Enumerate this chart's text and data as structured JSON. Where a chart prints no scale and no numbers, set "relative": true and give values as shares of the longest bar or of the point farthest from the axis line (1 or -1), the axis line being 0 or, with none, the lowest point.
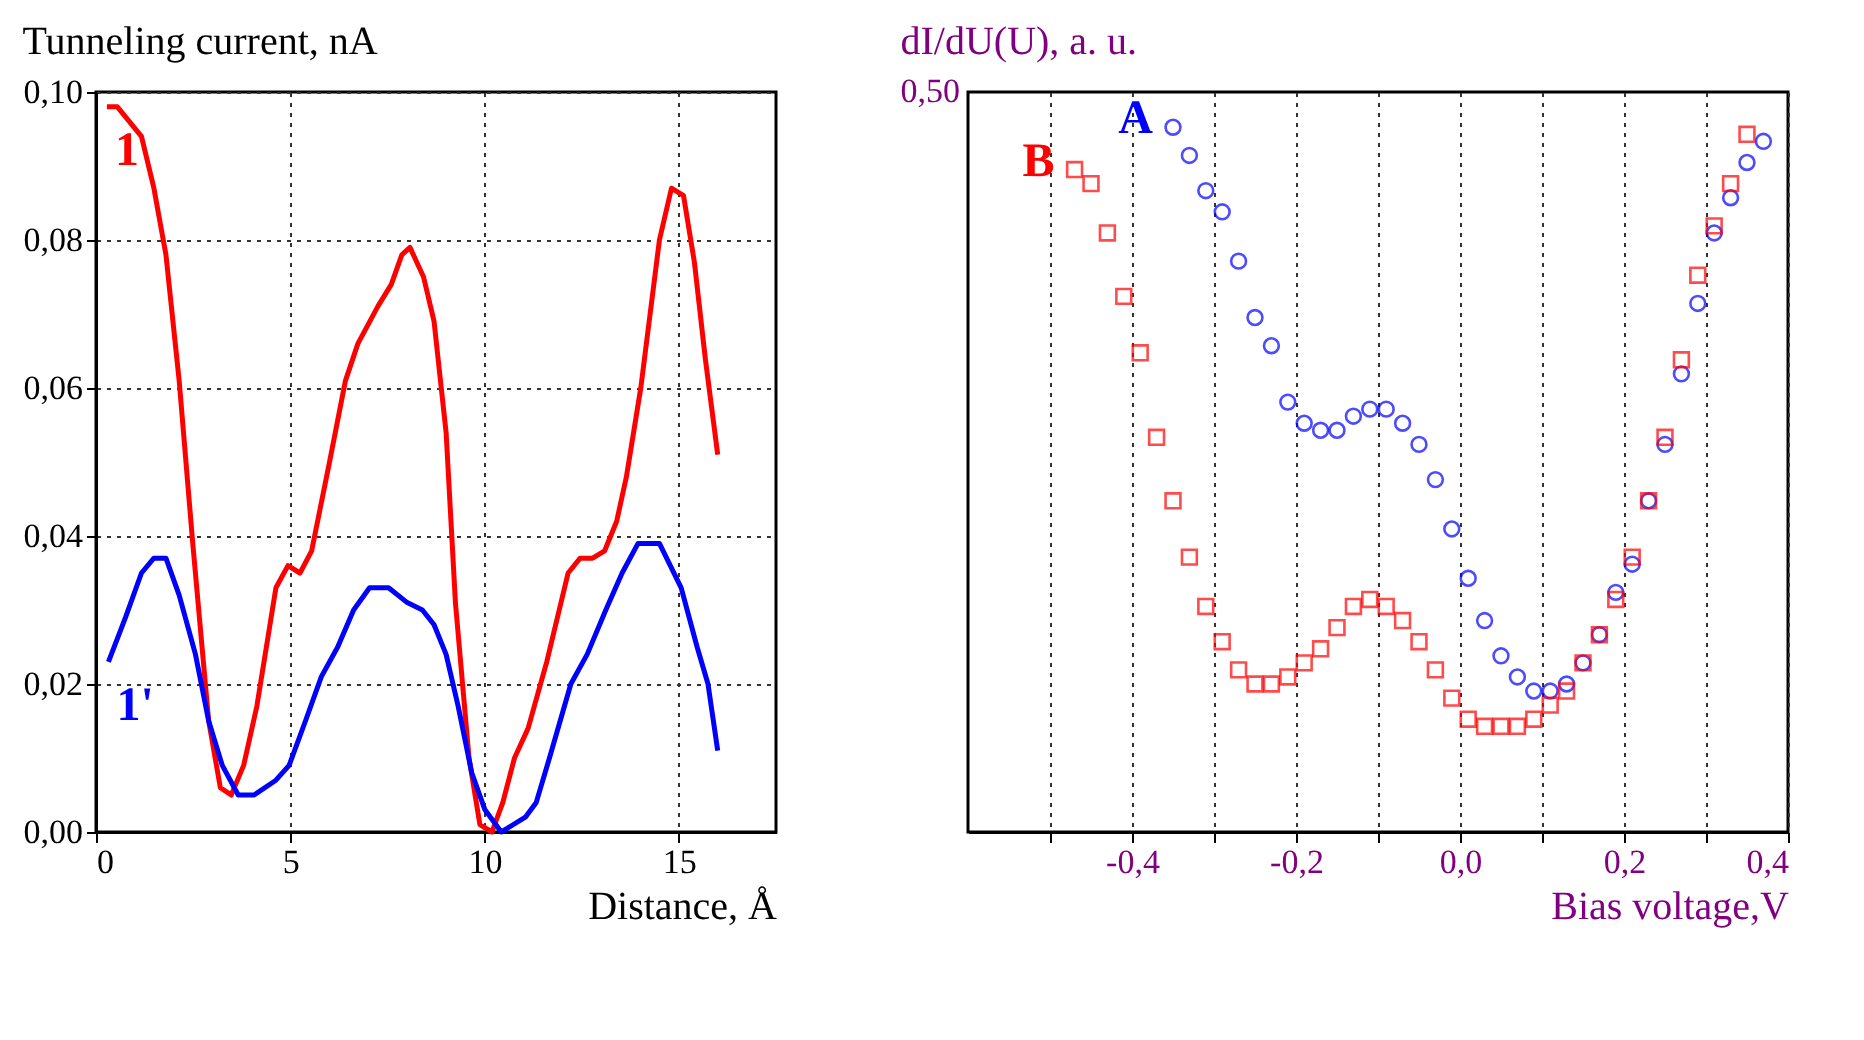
{
  "chart_data": [
    {
      "type": "line",
      "ylabel": "Tunneling current, nA",
      "xlabel": "Distance, Å",
      "xlim": [
        0,
        17.5
      ],
      "xticks": [
        0,
        5,
        10,
        15
      ],
      "ylim": [
        0,
        0.1
      ],
      "yticks": [
        {
          "value": 0,
          "label": "0,00"
        },
        {
          "value": 0.02,
          "label": "0,02"
        },
        {
          "value": 0.04,
          "label": "0,04"
        },
        {
          "value": 0.06,
          "label": "0,06"
        },
        {
          "value": 0.08,
          "label": "0,08"
        },
        {
          "value": 0.1,
          "label": "0,10"
        }
      ],
      "grid": true,
      "legend": false,
      "marker": "none",
      "line_style": "solid",
      "series": [
        {
          "name": "1",
          "color": "#ff0000",
          "x": [
            0.28,
            0.55,
            1.17,
            1.49,
            1.8,
            2.14,
            2.49,
            2.9,
            3.2,
            3.48,
            3.8,
            4.14,
            4.63,
            4.94,
            5.25,
            5.55,
            6.01,
            6.42,
            6.74,
            7.25,
            7.6,
            7.87,
            8.08,
            8.43,
            8.7,
            9.01,
            9.25,
            9.6,
            9.88,
            10.19,
            10.47,
            10.77,
            11.12,
            11.6,
            12.15,
            12.46,
            12.78,
            13.09,
            13.4,
            13.65,
            14.02,
            14.5,
            14.81,
            15.12,
            15.4,
            15.68,
            16.0
          ],
          "values": [
            0.098,
            0.098,
            0.094,
            0.087,
            0.078,
            0.061,
            0.039,
            0.015,
            0.006,
            0.005,
            0.009,
            0.017,
            0.033,
            0.036,
            0.035,
            0.038,
            0.05,
            0.061,
            0.066,
            0.071,
            0.074,
            0.078,
            0.079,
            0.075,
            0.069,
            0.054,
            0.031,
            0.01,
            0.001,
            0.0,
            0.004,
            0.01,
            0.014,
            0.023,
            0.035,
            0.037,
            0.037,
            0.038,
            0.042,
            0.048,
            0.06,
            0.08,
            0.087,
            0.086,
            0.077,
            0.064,
            0.051
          ]
        },
        {
          "name": "1'",
          "color": "#0000ff",
          "x": [
            0.32,
            0.76,
            1.17,
            1.49,
            1.8,
            2.14,
            2.56,
            2.9,
            3.25,
            3.66,
            4.07,
            4.63,
            4.97,
            5.39,
            5.8,
            6.22,
            6.63,
            7.04,
            7.53,
            8.01,
            8.4,
            8.7,
            9.01,
            9.32,
            9.67,
            10.01,
            10.43,
            11.05,
            11.33,
            11.67,
            12.22,
            12.64,
            13.12,
            13.54,
            13.95,
            14.5,
            15.06,
            15.47,
            15.75,
            16.0
          ],
          "values": [
            0.023,
            0.029,
            0.035,
            0.037,
            0.037,
            0.032,
            0.024,
            0.015,
            0.009,
            0.005,
            0.005,
            0.007,
            0.009,
            0.015,
            0.021,
            0.025,
            0.03,
            0.033,
            0.033,
            0.031,
            0.03,
            0.028,
            0.024,
            0.017,
            0.008,
            0.003,
            0.0,
            0.002,
            0.004,
            0.01,
            0.02,
            0.024,
            0.03,
            0.035,
            0.039,
            0.039,
            0.033,
            0.025,
            0.02,
            0.011
          ]
        }
      ]
    },
    {
      "type": "scatter",
      "relative": true,
      "ylabel": "dI/dU(U), a. u.",
      "xlabel": "Bias voltage,V",
      "xlim": [
        -0.6,
        0.4
      ],
      "xticks": [
        {
          "value": -0.5,
          "label": null
        },
        {
          "value": -0.4,
          "label": "-0,4"
        },
        {
          "value": -0.3,
          "label": null
        },
        {
          "value": -0.2,
          "label": "-0,2"
        },
        {
          "value": -0.1,
          "label": null
        },
        {
          "value": 0,
          "label": "0,0"
        },
        {
          "value": 0.1,
          "label": null
        },
        {
          "value": 0.2,
          "label": "0,2"
        },
        {
          "value": 0.3,
          "label": null
        },
        {
          "value": 0.4,
          "label": "0,4"
        }
      ],
      "grid": "x",
      "legend": false,
      "annotations": [
        "0,50"
      ],
      "series": [
        {
          "name": "A",
          "color": "#0000ff",
          "marker": "circle",
          "x": [
            -0.35,
            -0.33,
            -0.31,
            -0.29,
            -0.27,
            -0.25,
            -0.23,
            -0.21,
            -0.19,
            -0.17,
            -0.15,
            -0.13,
            -0.11,
            -0.09,
            -0.07,
            -0.05,
            -0.03,
            -0.01,
            0.01,
            0.03,
            0.05,
            0.07,
            0.09,
            0.11,
            0.13,
            0.15,
            0.17,
            0.19,
            0.21,
            0.23,
            0.25,
            0.27,
            0.29,
            0.31,
            0.33,
            0.35,
            0.37
          ],
          "values": [
            1.0,
            0.96,
            0.91,
            0.88,
            0.81,
            0.73,
            0.69,
            0.61,
            0.58,
            0.57,
            0.57,
            0.59,
            0.6,
            0.6,
            0.58,
            0.55,
            0.5,
            0.43,
            0.36,
            0.3,
            0.25,
            0.22,
            0.2,
            0.2,
            0.21,
            0.24,
            0.28,
            0.34,
            0.38,
            0.47,
            0.55,
            0.65,
            0.75,
            0.85,
            0.9,
            0.95,
            0.98
          ]
        },
        {
          "name": "B",
          "color": "#ff0000",
          "marker": "square",
          "x": [
            -0.47,
            -0.45,
            -0.43,
            -0.41,
            -0.39,
            -0.37,
            -0.35,
            -0.33,
            -0.31,
            -0.29,
            -0.27,
            -0.25,
            -0.23,
            -0.21,
            -0.19,
            -0.17,
            -0.15,
            -0.13,
            -0.11,
            -0.09,
            -0.07,
            -0.05,
            -0.03,
            -0.01,
            0.01,
            0.03,
            0.05,
            0.07,
            0.09,
            0.11,
            0.13,
            0.15,
            0.17,
            0.19,
            0.21,
            0.23,
            0.25,
            0.27,
            0.29,
            0.31,
            0.33,
            0.35
          ],
          "values": [
            0.94,
            0.92,
            0.85,
            0.76,
            0.68,
            0.56,
            0.47,
            0.39,
            0.32,
            0.27,
            0.23,
            0.21,
            0.21,
            0.22,
            0.24,
            0.26,
            0.29,
            0.32,
            0.33,
            0.32,
            0.3,
            0.27,
            0.23,
            0.19,
            0.16,
            0.15,
            0.15,
            0.15,
            0.16,
            0.18,
            0.2,
            0.24,
            0.28,
            0.33,
            0.39,
            0.47,
            0.56,
            0.67,
            0.79,
            0.86,
            0.92,
            0.99
          ]
        }
      ]
    }
  ]
}
